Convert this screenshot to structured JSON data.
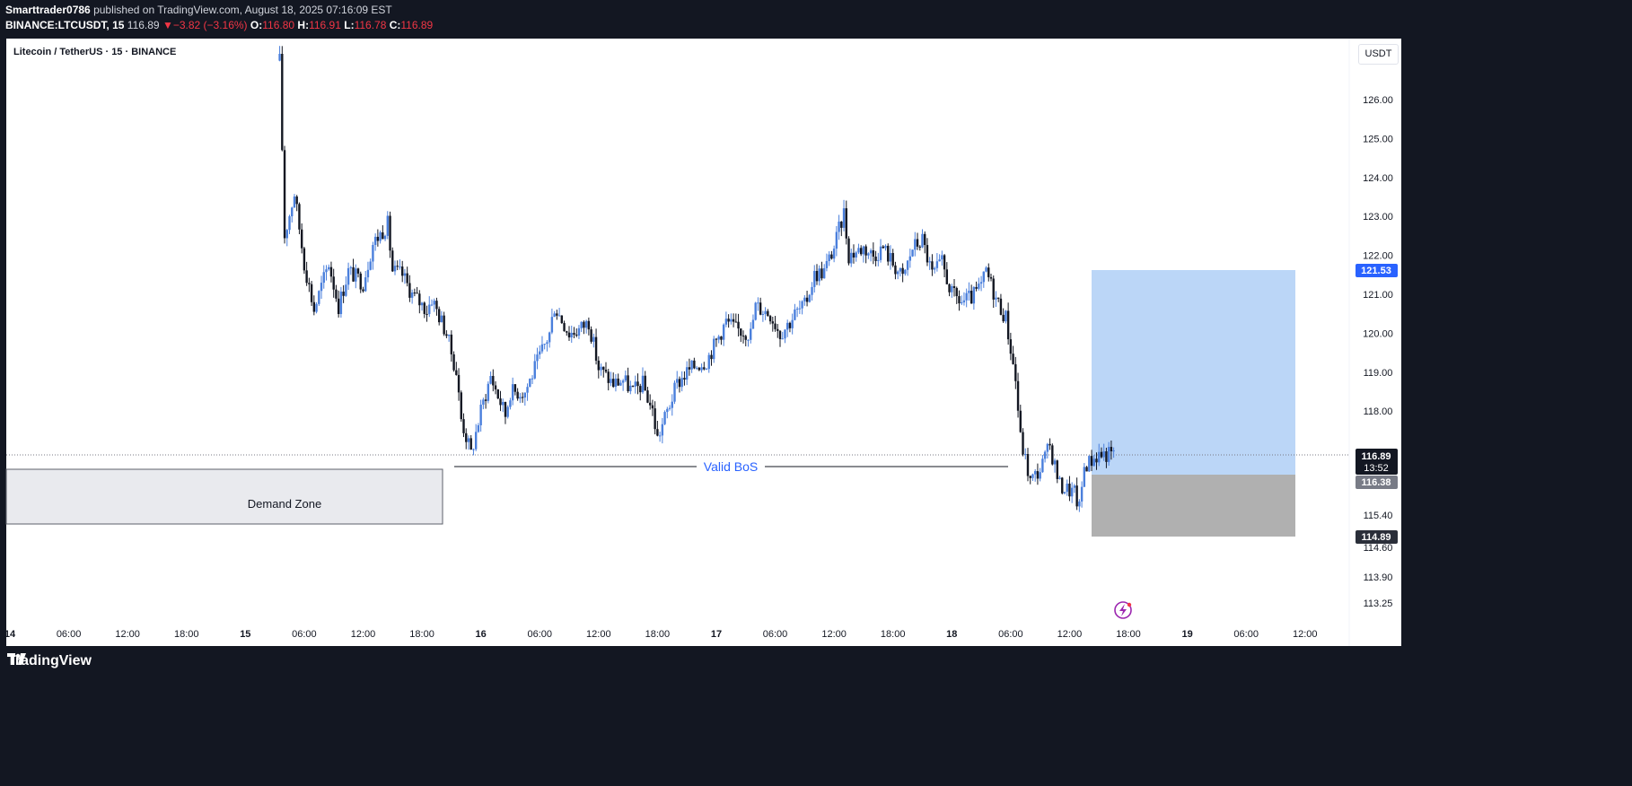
{
  "header": {
    "author": "Smarttrader0786",
    "published_text": "published on TradingView.com, August 18, 2025 07:16:09 EST",
    "symbol": "BINANCE:LTCUSDT, 15",
    "last": "116.89",
    "change": "▼−3.82 (−3.16%)",
    "o_label": "O:",
    "o": "116.80",
    "h_label": "H:",
    "h": "116.91",
    "l_label": "L:",
    "l": "116.78",
    "c_label": "C:",
    "c": "116.89"
  },
  "symbol_title": "Litecoin / TetherUS · 15 · BINANCE",
  "currency": "USDT",
  "footer": {
    "brand": "TradingView"
  },
  "colors": {
    "up": "#4a7fdc",
    "down": "#131722",
    "target": "#bbd6f7",
    "stop": "#b0b0b0",
    "accent": "#2962ff"
  },
  "chart_data": {
    "type": "candlestick",
    "timeframe": "15",
    "x_ticks": [
      "14",
      "06:00",
      "12:00",
      "18:00",
      "15",
      "06:00",
      "12:00",
      "18:00",
      "16",
      "06:00",
      "12:00",
      "18:00",
      "17",
      "06:00",
      "12:00",
      "18:00",
      "18",
      "06:00",
      "12:00",
      "18:00",
      "19",
      "06:00",
      "12:00"
    ],
    "y_ticks": [
      "126.00",
      "125.00",
      "124.00",
      "123.00",
      "122.00",
      "121.00",
      "120.00",
      "119.00",
      "118.00",
      "115.40",
      "114.60",
      "113.90",
      "113.25"
    ],
    "last_price": 116.89,
    "countdown": "13:52",
    "price_labels": {
      "target": "121.53",
      "entry": "116.38",
      "stop": "114.89"
    },
    "annotations": {
      "bos": "Valid BoS",
      "demand": "Demand Zone"
    },
    "path": [
      [
        27.5,
        127.0
      ],
      [
        28.0,
        122.5
      ],
      [
        29.0,
        123.6
      ],
      [
        30.0,
        121.8
      ],
      [
        31.0,
        120.6
      ],
      [
        32.5,
        121.8
      ],
      [
        33.5,
        120.7
      ],
      [
        34.5,
        121.6
      ],
      [
        36.0,
        121.3
      ],
      [
        37.0,
        122.3
      ],
      [
        38.5,
        122.8
      ],
      [
        39.0,
        121.6
      ],
      [
        40.0,
        121.5
      ],
      [
        41.0,
        121.0
      ],
      [
        42.5,
        120.6
      ],
      [
        43.0,
        120.9
      ],
      [
        44.5,
        120.0
      ],
      [
        45.5,
        119.0
      ],
      [
        46.0,
        117.8
      ],
      [
        47.0,
        116.9
      ],
      [
        48.0,
        118.0
      ],
      [
        49.0,
        118.9
      ],
      [
        50.5,
        117.9
      ],
      [
        51.0,
        118.5
      ],
      [
        52.5,
        118.5
      ],
      [
        53.5,
        119.1
      ],
      [
        55.0,
        120.0
      ],
      [
        55.5,
        120.7
      ],
      [
        57.0,
        120.0
      ],
      [
        58.0,
        120.1
      ],
      [
        59.0,
        120.3
      ],
      [
        60.0,
        119.1
      ],
      [
        61.5,
        118.7
      ],
      [
        62.5,
        118.8
      ],
      [
        63.5,
        118.5
      ],
      [
        64.5,
        118.7
      ],
      [
        65.5,
        118.0
      ],
      [
        66.0,
        117.3
      ],
      [
        67.0,
        118.0
      ],
      [
        68.0,
        118.7
      ],
      [
        69.0,
        119.0
      ],
      [
        70.0,
        119.2
      ],
      [
        71.0,
        119.3
      ],
      [
        72.0,
        119.8
      ],
      [
        73.0,
        120.3
      ],
      [
        74.0,
        120.1
      ],
      [
        75.5,
        120.0
      ],
      [
        76.0,
        120.7
      ],
      [
        77.5,
        120.5
      ],
      [
        78.5,
        120.0
      ],
      [
        79.5,
        120.3
      ],
      [
        80.0,
        120.5
      ],
      [
        81.0,
        120.7
      ],
      [
        82.0,
        121.5
      ],
      [
        83.0,
        121.6
      ],
      [
        84.0,
        122.2
      ],
      [
        85.0,
        123.1
      ],
      [
        85.5,
        122.0
      ],
      [
        87.0,
        122.2
      ],
      [
        88.0,
        122.0
      ],
      [
        89.0,
        122.2
      ],
      [
        90.0,
        121.8
      ],
      [
        91.0,
        121.4
      ],
      [
        92.0,
        122.2
      ],
      [
        93.0,
        122.4
      ],
      [
        94.0,
        121.5
      ],
      [
        95.0,
        121.8
      ],
      [
        96.0,
        121.0
      ],
      [
        97.0,
        120.8
      ],
      [
        98.0,
        120.9
      ],
      [
        99.0,
        121.2
      ],
      [
        99.5,
        121.6
      ],
      [
        100.5,
        120.9
      ],
      [
        101.5,
        120.4
      ],
      [
        102.5,
        118.8
      ],
      [
        103.0,
        117.3
      ],
      [
        104.0,
        116.2
      ],
      [
        105.0,
        116.5
      ],
      [
        106.0,
        117.1
      ],
      [
        107.0,
        116.1
      ],
      [
        108.5,
        115.9
      ],
      [
        109.0,
        115.5
      ],
      [
        109.5,
        116.6
      ],
      [
        111.0,
        116.9
      ],
      [
        112.5,
        116.89
      ]
    ]
  }
}
